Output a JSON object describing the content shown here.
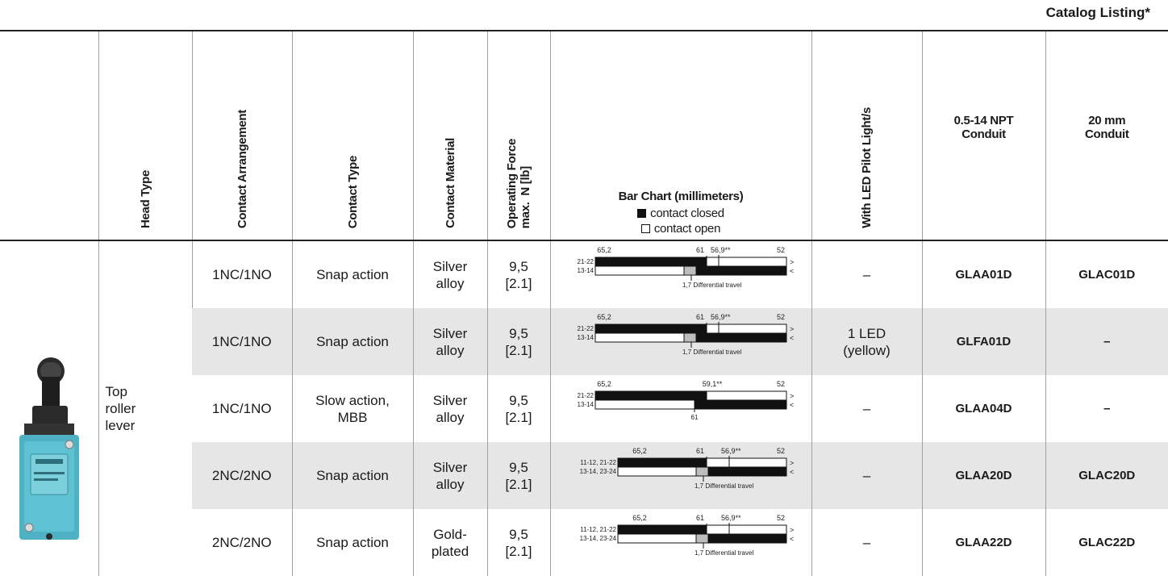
{
  "header": {
    "catalog_listing": "Catalog Listing*"
  },
  "columns": {
    "head_type": "Head Type",
    "contact_arrangement": "Contact Arrangement",
    "contact_type": "Contact Type",
    "contact_material": "Contact Material",
    "operating_force": [
      "Operating Force",
      "max.  N [lb]"
    ],
    "bar_chart": {
      "title": "Bar Chart (millimeters)",
      "closed": "contact closed",
      "open": "contact open"
    },
    "led": "With LED Pilot Light/s",
    "npt": [
      "0.5-14 NPT",
      "Conduit"
    ],
    "mm20": [
      "20 mm",
      "Conduit"
    ]
  },
  "head_type": [
    "Top",
    "roller",
    "lever"
  ],
  "rows": [
    {
      "arrangement": "1NC/1NO",
      "type": [
        "Snap action"
      ],
      "material": [
        "Silver",
        "alloy"
      ],
      "force": [
        "9,5",
        "[2.1]"
      ],
      "chart": {
        "upper_labels": [
          "65,2",
          "61",
          "56,9**",
          "52"
        ],
        "circuits": [
          "21-22",
          "13-14"
        ],
        "ends": [
          ">",
          "<"
        ],
        "note": "1,7 Differential travel"
      },
      "led": [
        "–"
      ],
      "npt": "GLAA01D",
      "mm20": "GLAC01D"
    },
    {
      "arrangement": "1NC/1NO",
      "type": [
        "Snap action"
      ],
      "material": [
        "Silver",
        "alloy"
      ],
      "force": [
        "9,5",
        "[2.1]"
      ],
      "chart": {
        "upper_labels": [
          "65,2",
          "61",
          "56,9**",
          "52"
        ],
        "circuits": [
          "21-22",
          "13-14"
        ],
        "ends": [
          ">",
          "<"
        ],
        "note": "1,7 Differential travel"
      },
      "led": [
        "1 LED",
        "(yellow)"
      ],
      "npt": "GLFA01D",
      "mm20": "–"
    },
    {
      "arrangement": "1NC/1NO",
      "type": [
        "Slow action,",
        "MBB"
      ],
      "material": [
        "Silver",
        "alloy"
      ],
      "force": [
        "9,5",
        "[2.1]"
      ],
      "chart": {
        "upper_labels": [
          "65,2",
          "59,1**",
          "52"
        ],
        "circuits": [
          "21-22",
          "13-14"
        ],
        "ends": [
          ">",
          "<"
        ],
        "note": "61"
      },
      "led": [
        "–"
      ],
      "npt": "GLAA04D",
      "mm20": "–"
    },
    {
      "arrangement": "2NC/2NO",
      "type": [
        "Snap action"
      ],
      "material": [
        "Silver",
        "alloy"
      ],
      "force": [
        "9,5",
        "[2.1]"
      ],
      "chart": {
        "upper_labels": [
          "65,2",
          "61",
          "56,9**",
          "52"
        ],
        "circuits": [
          "11-12, 21-22",
          "13-14, 23-24"
        ],
        "ends": [
          ">",
          "<"
        ],
        "note": "1,7 Differential travel"
      },
      "led": [
        "–"
      ],
      "npt": "GLAA20D",
      "mm20": "GLAC20D"
    },
    {
      "arrangement": "2NC/2NO",
      "type": [
        "Snap action"
      ],
      "material": [
        "Gold-",
        "plated"
      ],
      "force": [
        "9,5",
        "[2.1]"
      ],
      "chart": {
        "upper_labels": [
          "65,2",
          "61",
          "56,9**",
          "52"
        ],
        "circuits": [
          "11-12, 21-22",
          "13-14, 23-24"
        ],
        "ends": [
          ">",
          "<"
        ],
        "note": "1,7 Differential travel"
      },
      "led": [
        "–"
      ],
      "npt": "GLAA22D",
      "mm20": "GLAC22D"
    }
  ]
}
